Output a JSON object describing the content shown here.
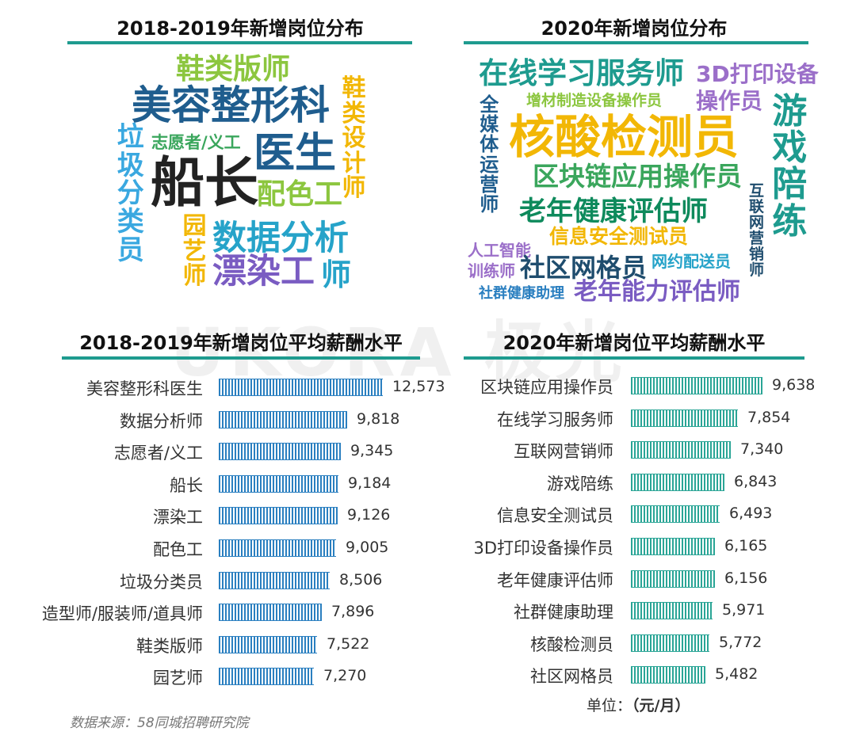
{
  "colors": {
    "green_rule": "#1e9b8f",
    "bar_left": "#2a7fc0",
    "bar_right": "#2aa596"
  },
  "titles": {
    "cloud_left": "2018-2019年新增岗位分布",
    "cloud_right": "2020年新增岗位分布",
    "bars_left": "2018-2019年新增岗位平均薪酬水平",
    "bars_right": "2020年新增岗位平均薪酬水平"
  },
  "cloud_left_words": [
    {
      "text": "鞋类版师",
      "color": "#8cc63f"
    },
    {
      "text": "美容整形科",
      "color": "#1f5d8e"
    },
    {
      "text": "鞋类设计师",
      "color": "#f2b705"
    },
    {
      "text": "志愿者/义工",
      "color": "#3aa65c"
    },
    {
      "text": "医生",
      "color": "#1f5d8e"
    },
    {
      "text": "垃圾分类员",
      "color": "#3aa8e0"
    },
    {
      "text": "船长",
      "color": "#222222"
    },
    {
      "text": "配色工",
      "color": "#8cc63f"
    },
    {
      "text": "园艺师",
      "color": "#f2b705"
    },
    {
      "text": "数据分析",
      "color": "#26a3c9"
    },
    {
      "text": "漂染工",
      "color": "#7a5cc2"
    },
    {
      "text": "师",
      "color": "#26a3c9"
    }
  ],
  "cloud_right_words": [
    {
      "text": "在线学习服务师",
      "color": "#1e9b8f"
    },
    {
      "text": "3D打印设备",
      "color": "#9b6fc9"
    },
    {
      "text": "操作员",
      "color": "#9b6fc9"
    },
    {
      "text": "增材制造设备操作员",
      "color": "#8cc63f"
    },
    {
      "text": "全媒体运营师",
      "color": "#1f5d8e"
    },
    {
      "text": "核酸检测员",
      "color": "#f2b705"
    },
    {
      "text": "游戏陪练",
      "color": "#1e9b8f"
    },
    {
      "text": "区块链应用操作员",
      "color": "#3aa65c"
    },
    {
      "text": "老年健康评估师",
      "color": "#0e8a5c"
    },
    {
      "text": "互联网营销师",
      "color": "#1f4d6e"
    },
    {
      "text": "信息安全测试员",
      "color": "#f2b705"
    },
    {
      "text": "人工智能",
      "color": "#9b6fc9"
    },
    {
      "text": "训练师",
      "color": "#9b6fc9"
    },
    {
      "text": "社区网格员",
      "color": "#1f4d6e"
    },
    {
      "text": "网约配送员",
      "color": "#26a3c9"
    },
    {
      "text": "社群健康助理",
      "color": "#2a7fc0"
    },
    {
      "text": "老年能力评估师",
      "color": "#7a5cc2"
    }
  ],
  "watermark": "UKORA 极光",
  "chart_data": [
    {
      "type": "bar",
      "orientation": "horizontal",
      "title": "2018-2019年新增岗位平均薪酬水平",
      "categories": [
        "美容整形科医生",
        "数据分析师",
        "志愿者/义工",
        "船长",
        "漂染工",
        "配色工",
        "垃圾分类员",
        "造型师/服装师/道具师",
        "鞋类版师",
        "园艺师"
      ],
      "values": [
        12573,
        9818,
        9345,
        9184,
        9126,
        9005,
        8506,
        7896,
        7522,
        7270
      ],
      "value_labels": [
        "12,573",
        "9,818",
        "9,345",
        "9,184",
        "9,126",
        "9,005",
        "8,506",
        "7,896",
        "7,522",
        "7,270"
      ],
      "xlim": [
        0,
        12573
      ]
    },
    {
      "type": "bar",
      "orientation": "horizontal",
      "title": "2020年新增岗位平均薪酬水平",
      "categories": [
        "区块链应用操作员",
        "在线学习服务师",
        "互联网营销师",
        "游戏陪练",
        "信息安全测试员",
        "3D打印设备操作员",
        "老年健康评估师",
        "社群健康助理",
        "核酸检测员",
        "社区网格员"
      ],
      "values": [
        9638,
        7854,
        7340,
        6843,
        6493,
        6165,
        6156,
        5971,
        5772,
        5482
      ],
      "value_labels": [
        "9,638",
        "7,854",
        "7,340",
        "6,843",
        "6,493",
        "6,165",
        "6,156",
        "5,971",
        "5,772",
        "5,482"
      ],
      "xlim": [
        0,
        9638
      ]
    }
  ],
  "unit": {
    "label": "单位：",
    "value": "（元/月）"
  },
  "source": "数据来源：58同城招聘研究院"
}
